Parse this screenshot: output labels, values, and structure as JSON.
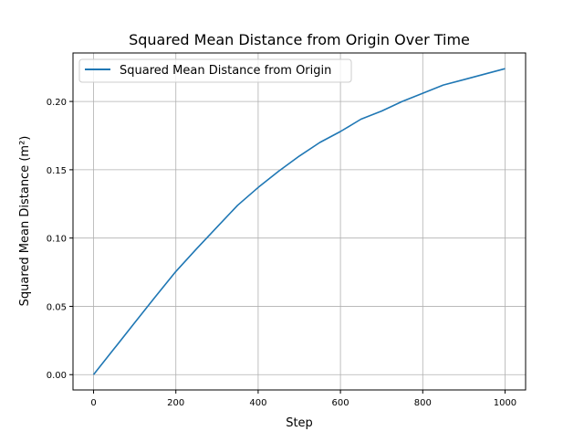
{
  "chart_data": {
    "type": "line",
    "title": "Squared Mean Distance from Origin Over Time",
    "xlabel": "Step",
    "ylabel": "Squared Mean Distance (m²)",
    "xlim": [
      -50,
      1050
    ],
    "ylim": [
      -0.0112,
      0.2355
    ],
    "xticks": [
      0,
      200,
      400,
      600,
      800,
      1000
    ],
    "xtick_labels": [
      "0",
      "200",
      "400",
      "600",
      "800",
      "1000"
    ],
    "yticks": [
      0,
      0.05,
      0.1,
      0.15,
      0.2
    ],
    "ytick_labels": [
      "0.00",
      "0.05",
      "0.10",
      "0.15",
      "0.20"
    ],
    "grid": true,
    "legend_position": "upper-left",
    "series": [
      {
        "name": "Squared Mean Distance from Origin",
        "color": "#1f77b4",
        "x": [
          0,
          50,
          100,
          150,
          200,
          250,
          300,
          350,
          400,
          450,
          500,
          550,
          600,
          650,
          700,
          750,
          800,
          850,
          900,
          950,
          1000
        ],
        "y": [
          0,
          0.019,
          0.038,
          0.057,
          0.0755,
          0.092,
          0.108,
          0.124,
          0.137,
          0.149,
          0.16,
          0.17,
          0.178,
          0.187,
          0.193,
          0.2,
          0.206,
          0.212,
          0.216,
          0.22,
          0.224
        ]
      }
    ]
  }
}
